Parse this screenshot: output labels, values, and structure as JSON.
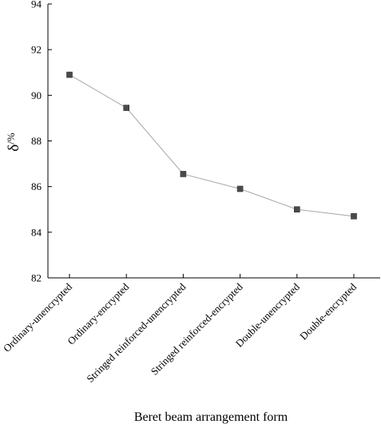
{
  "chart_data": {
    "type": "line",
    "categories": [
      "Ordinary-unencrypted",
      "Ordinary-encrypted",
      "Stringed reinforced-unencrypted",
      "Stringed reinforced-encrypted",
      "Double-unencrypted",
      "Double-encrypted"
    ],
    "series": [
      {
        "values": [
          90.9,
          89.45,
          86.55,
          85.9,
          85.0,
          84.7
        ]
      }
    ],
    "ylabel_main": "δ",
    "ylabel_unit": "/%",
    "xlabel": "Beret beam arrangement form",
    "ylim": [
      82,
      94
    ],
    "yticks": [
      82,
      84,
      86,
      88,
      90,
      92,
      94
    ],
    "grid": false,
    "line_color": "#a6a6a6",
    "marker_color": "#4a4a4a",
    "marker": "square"
  }
}
